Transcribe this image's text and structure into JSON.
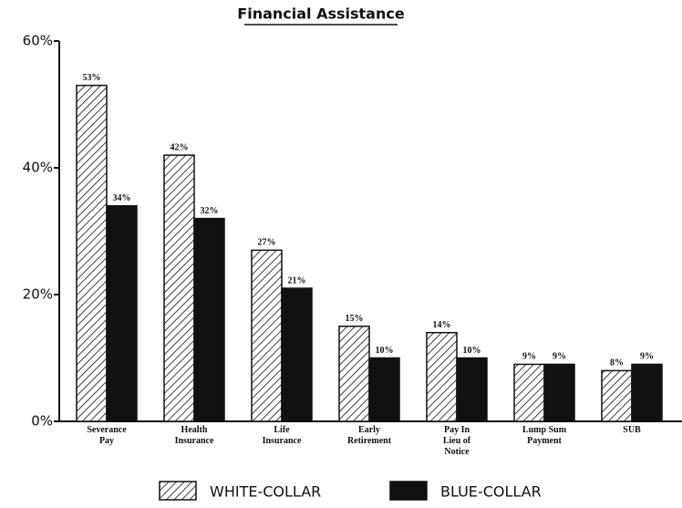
{
  "chart_data": {
    "type": "bar",
    "title": "Financial Assistance",
    "categories": [
      "Severance Pay",
      "Health Insurance",
      "Life Insurance",
      "Early Retirement",
      "Pay In Lieu of Notice",
      "Lump Sum Payment",
      "SUB"
    ],
    "series": [
      {
        "name": "WHITE-COLLAR",
        "color": "#ffffff",
        "hatch": true,
        "values": [
          53,
          42,
          27,
          15,
          14,
          9,
          8
        ],
        "value_labels": [
          "53%",
          "42%",
          "27%",
          "15%",
          "14%",
          "9%",
          "8%"
        ]
      },
      {
        "name": "BLUE-COLLAR",
        "color": "#111111",
        "hatch": false,
        "values": [
          34,
          32,
          21,
          10,
          10,
          9,
          9
        ],
        "value_labels": [
          "34%",
          "32%",
          "21%",
          "10%",
          "10%",
          "9%",
          "9%"
        ]
      }
    ],
    "ylim": [
      0,
      60
    ],
    "yticks": [
      {
        "value": 0,
        "label": "0%"
      },
      {
        "value": 20,
        "label": "20%"
      },
      {
        "value": 40,
        "label": "40%"
      },
      {
        "value": 60,
        "label": "60%"
      }
    ],
    "legend": "bottom"
  }
}
